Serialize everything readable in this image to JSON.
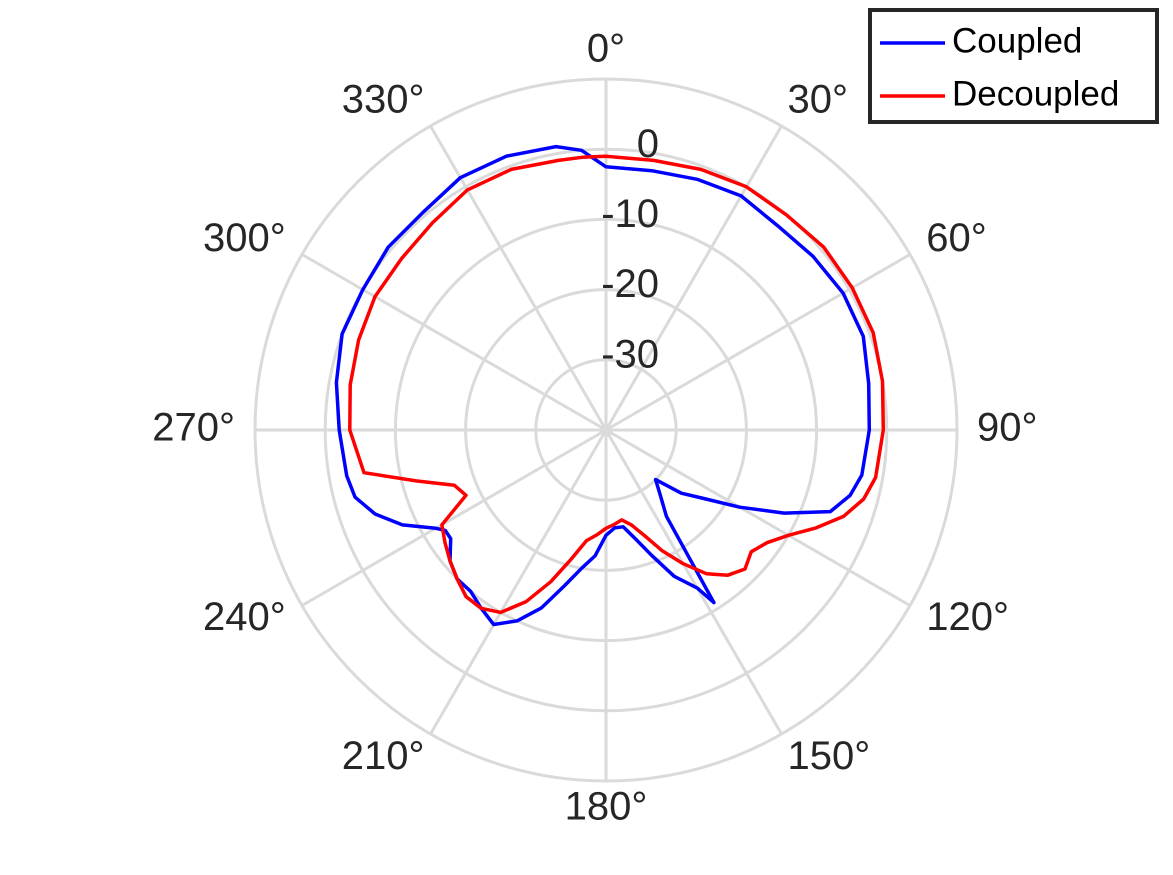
{
  "chart_data": {
    "type": "line",
    "projection": "polar",
    "theta_zero": "top",
    "theta_direction": "clockwise",
    "theta_ticks": [
      0,
      30,
      60,
      90,
      120,
      150,
      180,
      210,
      240,
      270,
      300,
      330
    ],
    "theta_tick_labels": [
      "0°",
      "30°",
      "60°",
      "90°",
      "120°",
      "150°",
      "180°",
      "210°",
      "240°",
      "270°",
      "300°",
      "330°"
    ],
    "rlim": [
      -40,
      10
    ],
    "r_ticks": [
      -30,
      -20,
      -10,
      0
    ],
    "r_tick_labels": [
      "-30",
      "-20",
      "-10",
      "0"
    ],
    "grid": true,
    "legend_position": "top-right",
    "series": [
      {
        "name": "Coupled",
        "color": "#0000ff",
        "theta": [
          0,
          10,
          20,
          30,
          40,
          50,
          60,
          70,
          80,
          90,
          100,
          105,
          110,
          115,
          120,
          125,
          130,
          135,
          140,
          145,
          148,
          150,
          155,
          160,
          165,
          170,
          175,
          180,
          185,
          190,
          195,
          200,
          205,
          210,
          215,
          220,
          225,
          230,
          235,
          238,
          240,
          245,
          250,
          255,
          260,
          270,
          280,
          290,
          300,
          310,
          320,
          330,
          340,
          350,
          355
        ],
        "r": [
          -2.5,
          -2.5,
          -2,
          -1.5,
          -2,
          -1.5,
          -1,
          -1,
          -2,
          -2.5,
          -3,
          -4,
          -6,
          -12,
          -18,
          -23,
          -26,
          -30,
          -28,
          -25,
          -11,
          -14,
          -17,
          -21,
          -24,
          -26,
          -26,
          -25,
          -22,
          -20,
          -17,
          -13,
          -10,
          -8,
          -9,
          -10,
          -10,
          -11,
          -13,
          -13,
          -12,
          -8,
          -5,
          -3,
          -2.5,
          -2,
          -1,
          0,
          0,
          0.5,
          0.5,
          1.5,
          1.5,
          1,
          0
        ]
      },
      {
        "name": "Decoupled",
        "color": "#ff0000",
        "theta": [
          0,
          10,
          20,
          30,
          40,
          50,
          60,
          70,
          80,
          90,
          100,
          105,
          110,
          115,
          120,
          125,
          130,
          135,
          140,
          145,
          150,
          155,
          160,
          165,
          170,
          175,
          180,
          185,
          190,
          195,
          200,
          205,
          210,
          215,
          220,
          225,
          230,
          235,
          240,
          245,
          250,
          255,
          260,
          270,
          280,
          290,
          300,
          310,
          320,
          330,
          340,
          350,
          355
        ],
        "r": [
          -1,
          -1,
          -0.5,
          0,
          0,
          0.5,
          0.5,
          0.5,
          0,
          -0.5,
          -1,
          -2,
          -4,
          -7,
          -10,
          -12,
          -13,
          -12,
          -13,
          -15,
          -18,
          -21,
          -24,
          -26,
          -27,
          -26.5,
          -26,
          -25,
          -24,
          -21,
          -17,
          -13,
          -10,
          -9,
          -9,
          -10,
          -11,
          -12,
          -13,
          -18,
          -17,
          -12,
          -5,
          -3.5,
          -3,
          -2.5,
          -2,
          -2,
          -1.5,
          -0.5,
          -0.5,
          -1,
          -1
        ]
      }
    ]
  }
}
